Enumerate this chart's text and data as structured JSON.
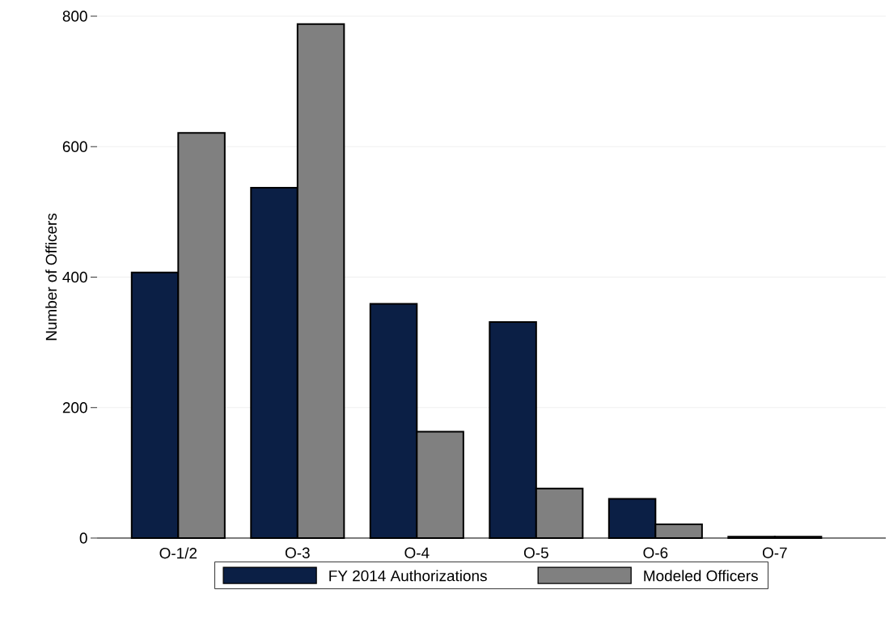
{
  "chart_data": {
    "type": "bar",
    "ylabel": "Number of Officers",
    "categories": [
      "O-1/2",
      "O-3",
      "O-4",
      "O-5",
      "O-6",
      "O-7"
    ],
    "series": [
      {
        "name": "FY 2014 Authorizations",
        "color": "#0b1f45",
        "values": [
          407,
          537,
          359,
          331,
          60,
          2
        ]
      },
      {
        "name": "Modeled Officers",
        "color": "#808080",
        "values": [
          621,
          788,
          163,
          76,
          21,
          2
        ]
      }
    ],
    "ylim": [
      0,
      800
    ],
    "yticks": [
      0,
      200,
      400,
      600,
      800
    ],
    "grid": "y",
    "legend": "bottom"
  }
}
